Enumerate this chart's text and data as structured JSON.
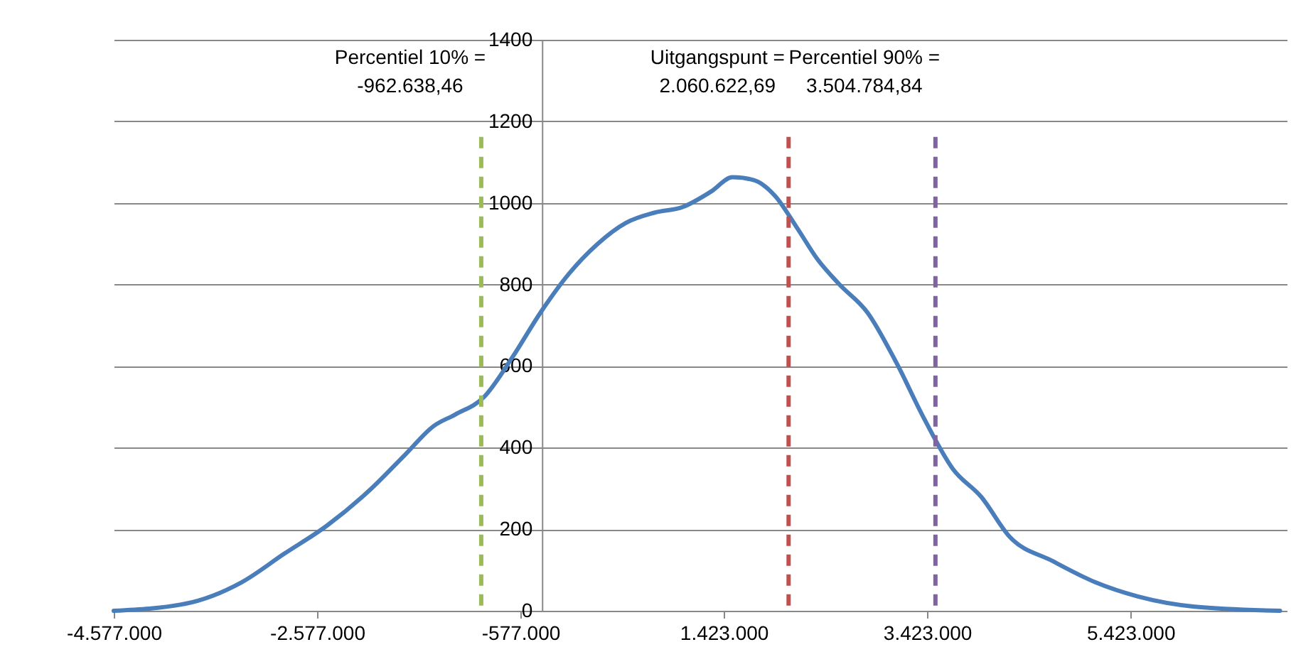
{
  "chart_data": {
    "type": "line",
    "x": [
      -4577000,
      -3878000,
      -3318000,
      -2899000,
      -2479000,
      -2059000,
      -1710000,
      -1430000,
      -1220000,
      -940000,
      -660000,
      -380000,
      -101000,
      180000,
      460000,
      740000,
      1019000,
      1299000,
      1509000,
      1718000,
      1928000,
      2138000,
      2347000,
      2557000,
      2837000,
      3117000,
      3396000,
      3676000,
      3956000,
      4236000,
      4656000,
      5076000,
      5496000,
      6055000,
      6894000
    ],
    "series": [
      {
        "color": "#4a7ebb",
        "values": [
          0,
          17,
          70,
          140,
          209,
          296,
          383,
          453,
          481,
          523,
          620,
          731,
          826,
          899,
          951,
          976,
          990,
          1028,
          1063,
          1056,
          1017,
          941,
          861,
          801,
          731,
          610,
          470,
          348,
          279,
          181,
          122,
          70,
          35,
          10,
          0
        ]
      }
    ],
    "xlim": [
      -4577000,
      6960000
    ],
    "xticks": [
      {
        "value": -4577000,
        "label": "-4.577.000"
      },
      {
        "value": -2577000,
        "label": "-2.577.000"
      },
      {
        "value": -577000,
        "label": "-577.000"
      },
      {
        "value": 1423000,
        "label": "1.423.000"
      },
      {
        "value": 3423000,
        "label": "3.423.000"
      },
      {
        "value": 5423000,
        "label": "5.423.000"
      }
    ],
    "ylim": [
      0,
      1400
    ],
    "yticks": [
      0,
      200,
      400,
      600,
      800,
      1000,
      1200,
      1400
    ],
    "grid": "y",
    "line_style": "solid",
    "ref_lines": [
      {
        "axis": "x",
        "value": -962638.46,
        "label": "Percentiel 10% =\n-962.638,46",
        "color": "#9bbb59",
        "line_style": "dashed"
      },
      {
        "axis": "x",
        "value": 2060622.69,
        "label": "Uitgangspunt =\n2.060.622,69",
        "color": "#c0504d",
        "line_style": "dashed"
      },
      {
        "axis": "x",
        "value": 3504784.84,
        "label": "Percentiel 90% =\n3.504.784,84",
        "color": "#8064a2",
        "line_style": "dashed"
      }
    ]
  }
}
